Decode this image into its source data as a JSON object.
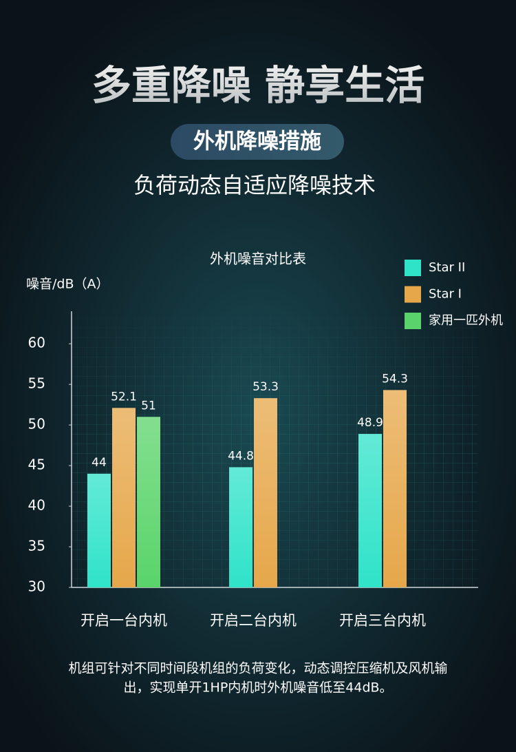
{
  "header": {
    "title": "多重降噪 静享生活",
    "badge": "外机降噪措施",
    "subtitle": "负荷动态自适应降噪技术"
  },
  "chart_data": {
    "type": "bar",
    "title": "外机噪音对比表",
    "y_label": "噪音/dB（A）",
    "categories": [
      "开启一台内机",
      "开启二台内机",
      "开启三台内机"
    ],
    "series": [
      {
        "name": "Star II",
        "color": "#2fe3c9",
        "values": [
          44,
          44.8,
          48.9
        ]
      },
      {
        "name": "Star I",
        "color": "#e6a74a",
        "values": [
          52.1,
          53.3,
          54.3
        ]
      },
      {
        "name": "家用一匹外机",
        "color": "#5ad46a",
        "values": [
          51,
          null,
          null
        ]
      }
    ],
    "ylim": [
      30,
      64
    ],
    "yticks": [
      30,
      35,
      40,
      45,
      50,
      55,
      60
    ],
    "grid": false,
    "legend": "top-right"
  },
  "footer": {
    "lines": [
      "机组可针对不同时间段机组的负荷变化，动态调控压缩机及风机输",
      "出，实现单开1HP内机时外机噪音低至44dB。"
    ]
  }
}
